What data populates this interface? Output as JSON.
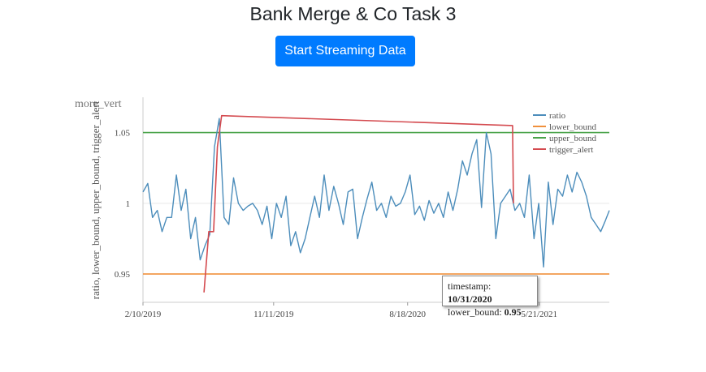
{
  "page": {
    "title": "Bank Merge & Co Task 3",
    "stream_button": "Start Streaming Data",
    "menu_icon_label": "more_vert"
  },
  "tooltip": {
    "timestamp_label": "timestamp:",
    "timestamp_value": "10/31/2020",
    "bound_label": "lower_bound:",
    "bound_value": "0.95"
  },
  "chart_data": {
    "type": "line",
    "title": "",
    "xlabel": "",
    "ylabel": "ratio, lower_bound, upper_bound, trigger_alert",
    "ylim": [
      0.93,
      1.075
    ],
    "xlim": [
      "2019-02-10",
      "2021-10-15"
    ],
    "x_ticks": [
      "2/10/2019",
      "11/11/2019",
      "8/18/2020",
      "5/21/2021"
    ],
    "x_tick_dates": [
      "2019-02-10",
      "2019-11-11",
      "2020-08-18",
      "2021-05-21"
    ],
    "y_ticks": [
      0.95,
      1,
      1.05
    ],
    "y_tick_labels": [
      "0.95",
      "1",
      "1.05"
    ],
    "grid": true,
    "legend_position": "top-right",
    "colors": {
      "ratio": "#4c8dbb",
      "lower_bound": "#f0903c",
      "upper_bound": "#4aa34a",
      "trigger_alert": "#d44a4f"
    },
    "series": [
      {
        "name": "ratio",
        "color": "#4c8dbb",
        "x": [
          "2019-02-10",
          "2019-02-20",
          "2019-03-02",
          "2019-03-12",
          "2019-03-22",
          "2019-04-01",
          "2019-04-11",
          "2019-04-21",
          "2019-05-01",
          "2019-05-11",
          "2019-05-21",
          "2019-05-31",
          "2019-06-10",
          "2019-06-20",
          "2019-06-30",
          "2019-07-10",
          "2019-07-20",
          "2019-07-30",
          "2019-08-09",
          "2019-08-19",
          "2019-08-29",
          "2019-09-08",
          "2019-09-18",
          "2019-09-28",
          "2019-10-08",
          "2019-10-18",
          "2019-10-28",
          "2019-11-07",
          "2019-11-17",
          "2019-11-27",
          "2019-12-07",
          "2019-12-17",
          "2019-12-27",
          "2020-01-06",
          "2020-01-16",
          "2020-01-26",
          "2020-02-05",
          "2020-02-15",
          "2020-02-25",
          "2020-03-06",
          "2020-03-16",
          "2020-03-26",
          "2020-04-05",
          "2020-04-15",
          "2020-04-25",
          "2020-05-05",
          "2020-05-15",
          "2020-05-25",
          "2020-06-04",
          "2020-06-14",
          "2020-06-24",
          "2020-07-04",
          "2020-07-14",
          "2020-07-24",
          "2020-08-03",
          "2020-08-13",
          "2020-08-23",
          "2020-09-02",
          "2020-09-12",
          "2020-09-22",
          "2020-10-02",
          "2020-10-12",
          "2020-10-22",
          "2020-11-01",
          "2020-11-11",
          "2020-11-21",
          "2020-12-01",
          "2020-12-11",
          "2020-12-21",
          "2020-12-31",
          "2021-01-10",
          "2021-01-20",
          "2021-01-30",
          "2021-02-09",
          "2021-02-19",
          "2021-03-01",
          "2021-03-11",
          "2021-03-21",
          "2021-03-31",
          "2021-04-10",
          "2021-04-20",
          "2021-04-30",
          "2021-05-10",
          "2021-05-20",
          "2021-05-30",
          "2021-06-09",
          "2021-06-19",
          "2021-06-29",
          "2021-07-09",
          "2021-07-19",
          "2021-07-29",
          "2021-08-08",
          "2021-08-18",
          "2021-08-28",
          "2021-09-07",
          "2021-09-17",
          "2021-09-27",
          "2021-10-07",
          "2021-10-15"
        ],
        "values": [
          1.008,
          1.014,
          0.99,
          0.995,
          0.98,
          0.99,
          0.99,
          1.02,
          0.995,
          1.01,
          0.975,
          0.99,
          0.96,
          0.97,
          0.978,
          1.04,
          1.06,
          0.99,
          0.985,
          1.018,
          1.0,
          0.995,
          0.998,
          1.0,
          0.995,
          0.985,
          0.998,
          0.975,
          1.0,
          0.99,
          1.005,
          0.97,
          0.98,
          0.965,
          0.975,
          0.99,
          1.005,
          0.99,
          1.02,
          0.995,
          1.012,
          1.0,
          0.985,
          1.008,
          1.01,
          0.975,
          0.99,
          1.003,
          1.015,
          0.995,
          1.0,
          0.99,
          1.005,
          0.998,
          1.0,
          1.008,
          1.02,
          0.992,
          0.998,
          0.988,
          1.002,
          0.993,
          1.0,
          0.99,
          1.008,
          0.995,
          1.01,
          1.03,
          1.02,
          1.035,
          1.045,
          0.997,
          1.05,
          1.035,
          0.975,
          1.0,
          1.005,
          1.01,
          0.995,
          1.0,
          0.99,
          1.02,
          0.975,
          1.0,
          0.955,
          1.015,
          0.985,
          1.01,
          1.005,
          1.02,
          1.008,
          1.022,
          1.015,
          1.005,
          0.99,
          0.985,
          0.98,
          0.988,
          0.995
        ]
      },
      {
        "name": "lower_bound",
        "color": "#f0903c",
        "x": [
          "2019-02-10",
          "2021-10-15"
        ],
        "values": [
          0.95,
          0.95
        ]
      },
      {
        "name": "upper_bound",
        "color": "#4aa34a",
        "x": [
          "2019-02-10",
          "2021-10-15"
        ],
        "values": [
          1.05,
          1.05
        ]
      },
      {
        "name": "trigger_alert",
        "color": "#d44a4f",
        "x": [
          "2019-06-18",
          "2019-06-28",
          "2019-07-08",
          "2019-07-16",
          "2019-07-25",
          "2021-03-26",
          "2021-03-28"
        ],
        "values": [
          0.937,
          0.98,
          0.98,
          1.04,
          1.062,
          1.055,
          1.0
        ]
      }
    ]
  }
}
